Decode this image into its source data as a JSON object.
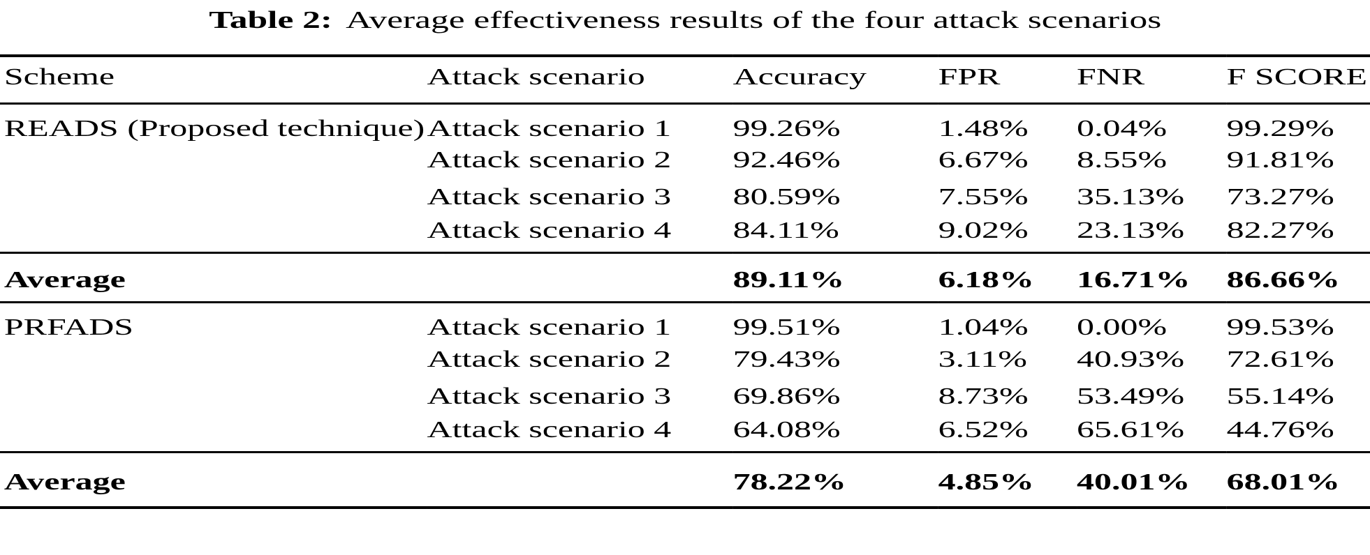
{
  "page": {
    "background": "#ffffff",
    "text_color": "#000000",
    "rule_color": "#000000"
  },
  "caption": {
    "label": "Table 2:",
    "text": "Average effectiveness results of the four attack scenarios"
  },
  "table": {
    "columns": [
      "Scheme",
      "Attack scenario",
      "Accuracy",
      "FPR",
      "FNR",
      "F SCORE"
    ],
    "sections": [
      {
        "scheme": "READS (Proposed technique)",
        "rows": [
          {
            "scenario": "Attack scenario 1",
            "accuracy": "99.26%",
            "fpr": "1.48%",
            "fnr": "0.04%",
            "fscore": "99.29%"
          },
          {
            "scenario": "Attack scenario 2",
            "accuracy": "92.46%",
            "fpr": "6.67%",
            "fnr": "8.55%",
            "fscore": "91.81%"
          },
          {
            "scenario": "Attack scenario 3",
            "accuracy": "80.59%",
            "fpr": "7.55%",
            "fnr": "35.13%",
            "fscore": "73.27%"
          },
          {
            "scenario": "Attack scenario 4",
            "accuracy": "84.11%",
            "fpr": "9.02%",
            "fnr": "23.13%",
            "fscore": "82.27%"
          }
        ],
        "average": {
          "label": "Average",
          "accuracy": "89.11%",
          "fpr": "6.18%",
          "fnr": "16.71%",
          "fscore": "86.66%"
        }
      },
      {
        "scheme": "PRFADS",
        "rows": [
          {
            "scenario": "Attack scenario 1",
            "accuracy": "99.51%",
            "fpr": "1.04%",
            "fnr": "0.00%",
            "fscore": "99.53%"
          },
          {
            "scenario": "Attack scenario 2",
            "accuracy": "79.43%",
            "fpr": "3.11%",
            "fnr": "40.93%",
            "fscore": "72.61%"
          },
          {
            "scenario": "Attack scenario 3",
            "accuracy": "69.86%",
            "fpr": "8.73%",
            "fnr": "53.49%",
            "fscore": "55.14%"
          },
          {
            "scenario": "Attack scenario 4",
            "accuracy": "64.08%",
            "fpr": "6.52%",
            "fnr": "65.61%",
            "fscore": "44.76%"
          }
        ],
        "average": {
          "label": "Average",
          "accuracy": "78.22%",
          "fpr": "4.85%",
          "fnr": "40.01%",
          "fscore": "68.01%"
        }
      }
    ]
  }
}
